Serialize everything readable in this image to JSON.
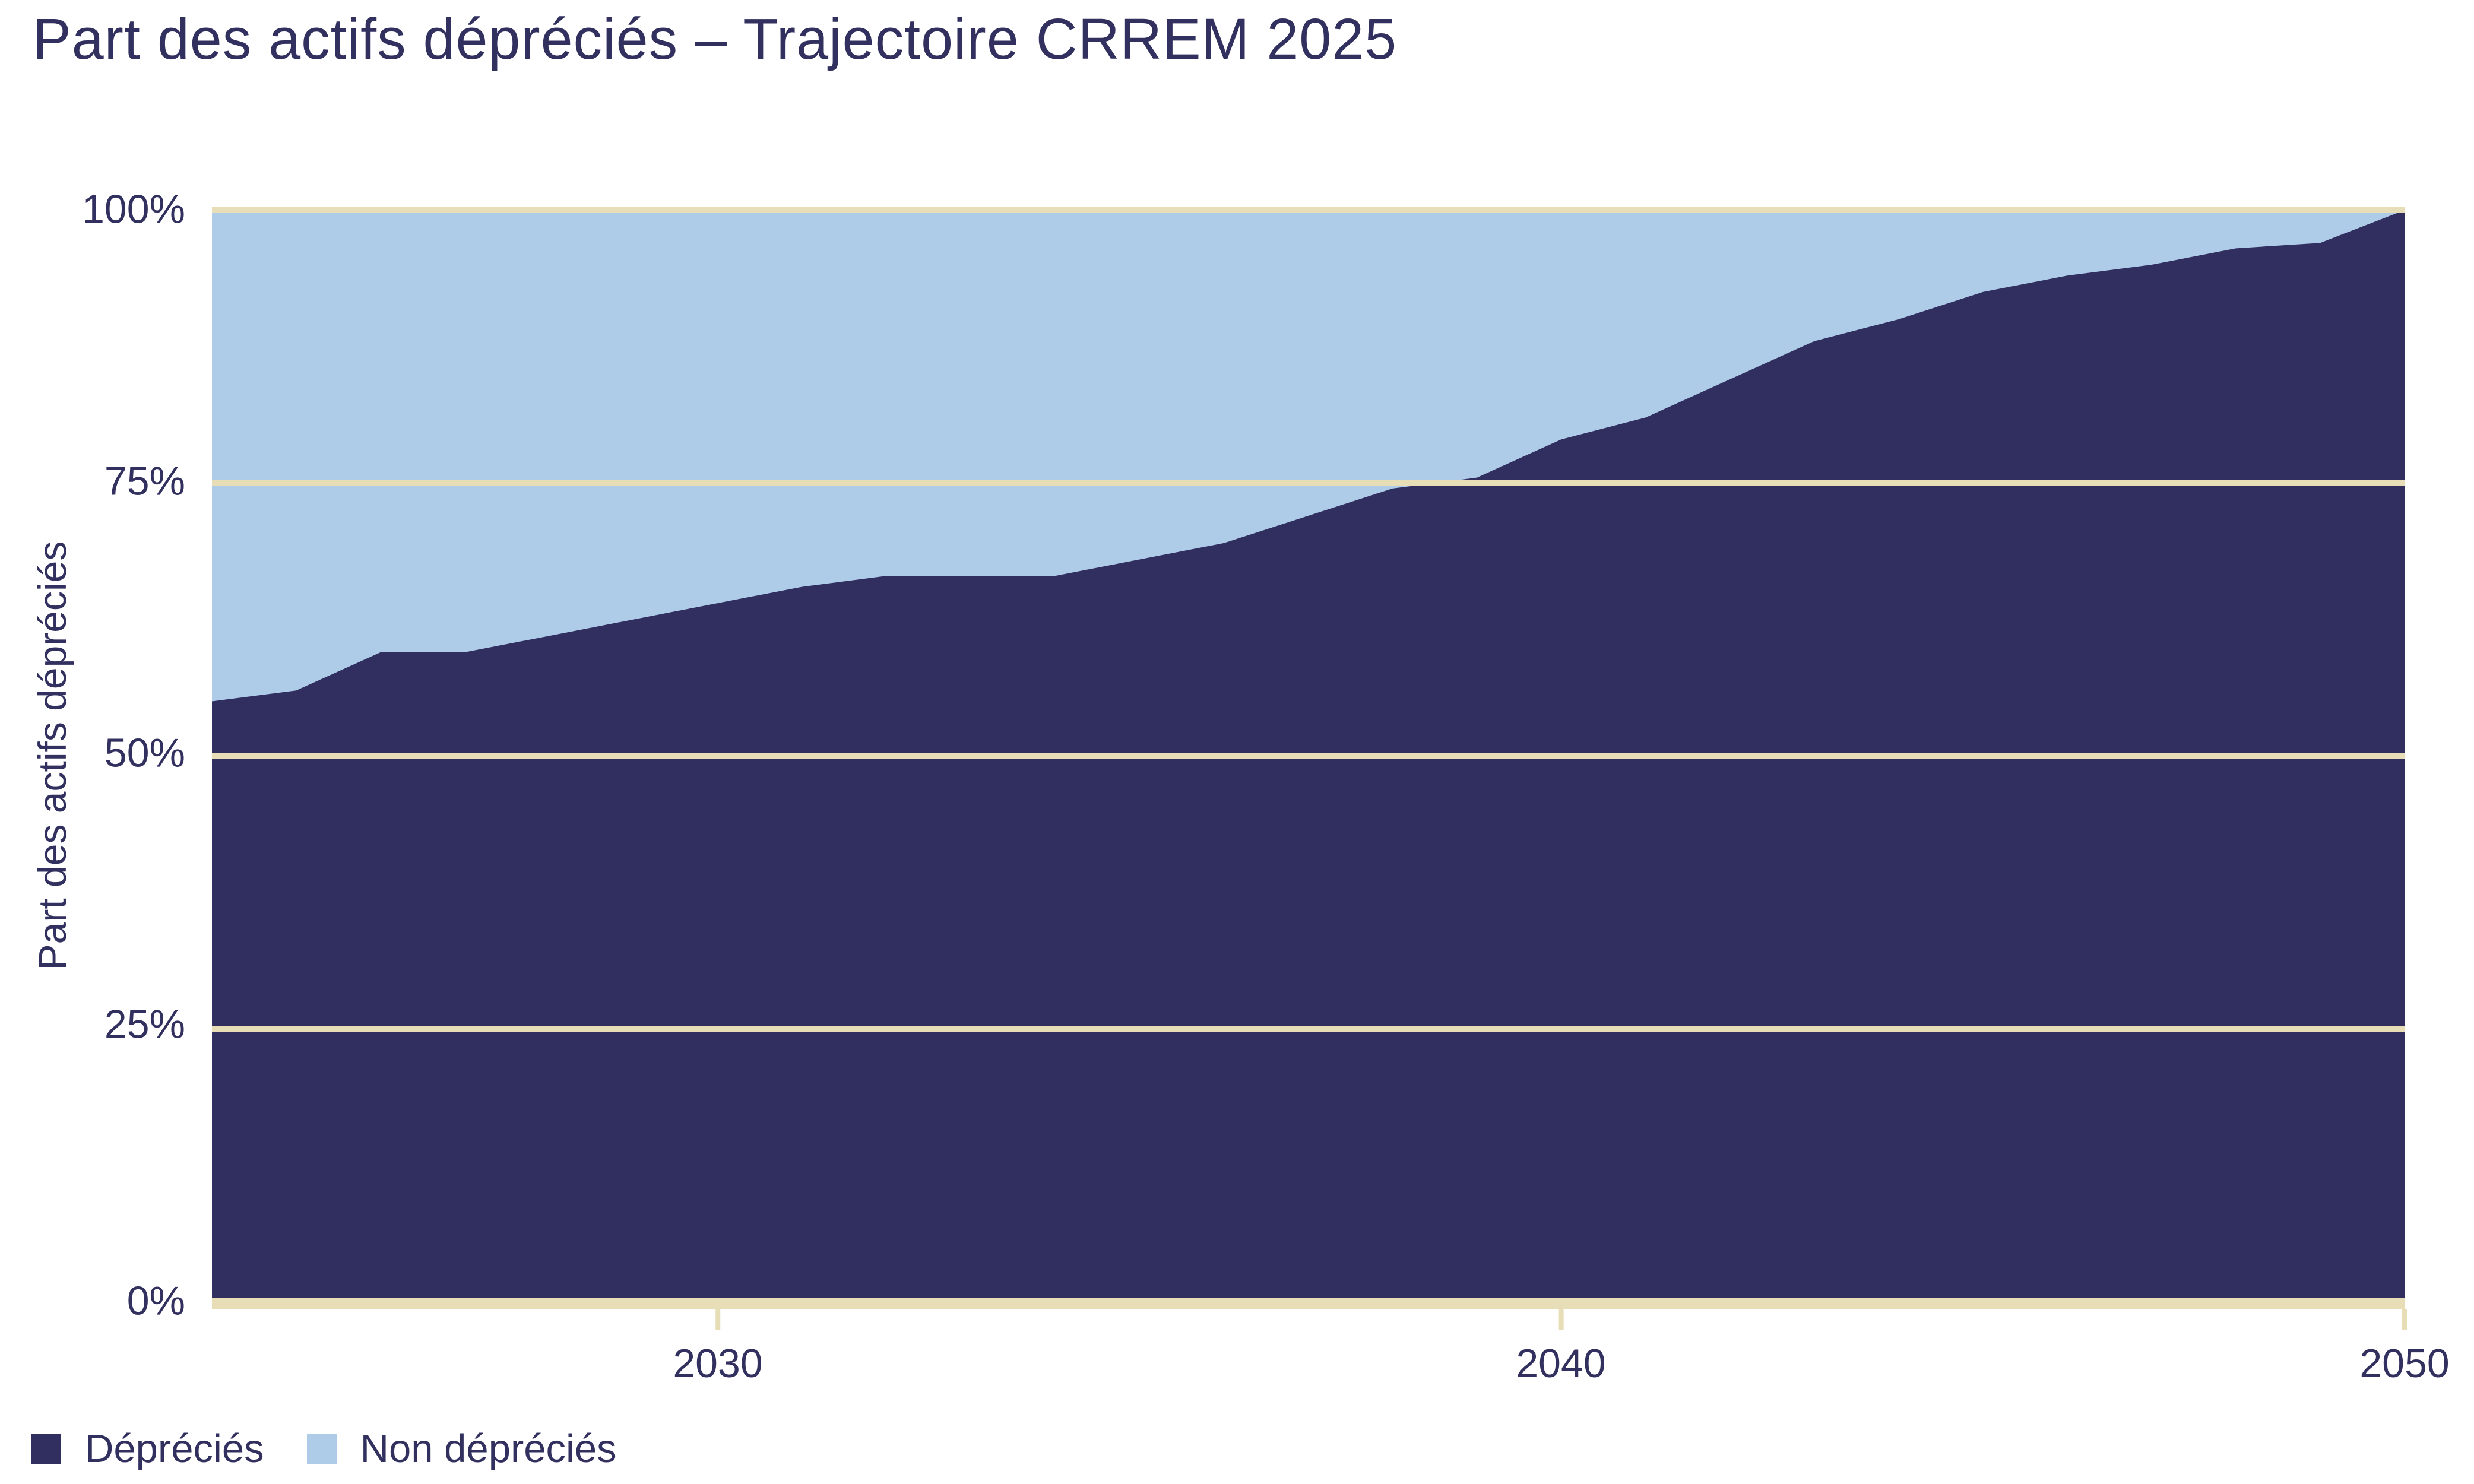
{
  "title": "Part des actifs dépréciés – Trajectoire CRREM 2025",
  "y_axis": {
    "title": "Part des actifs dépréciés",
    "ticks": [
      "100%",
      "75%",
      "50%",
      "25%",
      "0%"
    ],
    "tick_values": [
      100,
      75,
      50,
      25,
      0
    ]
  },
  "x_axis": {
    "ticks": [
      "2030",
      "2040",
      "2050"
    ],
    "tick_values": [
      2030,
      2040,
      2050
    ]
  },
  "legend": [
    {
      "label": "Dépréciés",
      "color": "#312f5f"
    },
    {
      "label": "Non dépréciés",
      "color": "#aecbe8"
    }
  ],
  "colors": {
    "depreciated": "#312f5f",
    "non_depreciated": "#aecbe8",
    "gridline": "#e7ddb6",
    "text": "#32305e",
    "background": "#ffffff"
  },
  "chart_data": {
    "type": "area",
    "stacked": true,
    "percent_stack": true,
    "title": "Part des actifs dépréciés – Trajectoire CRREM 2025",
    "ylabel": "Part des actifs dépréciés",
    "xlabel": "",
    "ylim": [
      0,
      100
    ],
    "xlim": [
      2024,
      2050
    ],
    "grid": "horizontal",
    "legend_position": "bottom-left",
    "x": [
      2024,
      2025,
      2026,
      2027,
      2028,
      2029,
      2030,
      2031,
      2032,
      2033,
      2034,
      2035,
      2036,
      2037,
      2038,
      2039,
      2040,
      2041,
      2042,
      2043,
      2044,
      2045,
      2046,
      2047,
      2048,
      2049,
      2050
    ],
    "series": [
      {
        "name": "Dépréciés",
        "color": "#312f5f",
        "values": [
          55,
          56,
          59.5,
          59.5,
          61,
          62.5,
          64,
          65.5,
          66.5,
          66.5,
          66.5,
          68,
          69.5,
          72,
          74.5,
          75.5,
          79,
          81,
          84.5,
          88,
          90,
          92.5,
          94,
          95,
          96.5,
          97,
          100
        ]
      },
      {
        "name": "Non dépréciés",
        "color": "#aecbe8",
        "values": [
          45,
          44,
          40.5,
          40.5,
          39,
          37.5,
          36,
          34.5,
          33.5,
          33.5,
          33.5,
          32,
          30.5,
          28,
          25.5,
          24.5,
          21,
          19,
          15.5,
          12,
          10,
          7.5,
          6,
          5,
          3.5,
          3,
          0
        ]
      }
    ]
  }
}
